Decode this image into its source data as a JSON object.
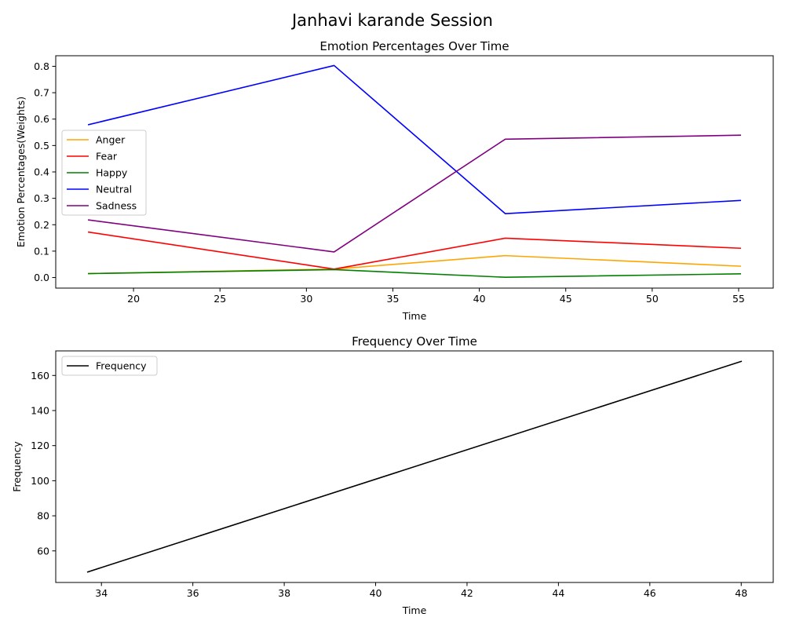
{
  "figure": {
    "suptitle": "Janhavi karande Session"
  },
  "chart_data": [
    {
      "type": "line",
      "title": "Emotion Percentages Over Time",
      "xlabel": "Time",
      "ylabel": "Emotion Percentages(Weights)",
      "xlim": [
        15.5,
        57.0
      ],
      "ylim": [
        -0.04,
        0.84
      ],
      "xticks": [
        20,
        25,
        30,
        35,
        40,
        45,
        50,
        55
      ],
      "yticks": [
        0.0,
        0.1,
        0.2,
        0.3,
        0.4,
        0.5,
        0.6,
        0.7,
        0.8
      ],
      "grid": false,
      "legend": "center-left",
      "x": [
        17.4,
        31.6,
        41.5,
        55.1
      ],
      "series": [
        {
          "name": "Anger",
          "color": "#ffa500",
          "values": [
            0.015,
            0.032,
            0.083,
            0.043
          ]
        },
        {
          "name": "Fear",
          "color": "#ff0000",
          "values": [
            0.172,
            0.032,
            0.149,
            0.111
          ]
        },
        {
          "name": "Happy",
          "color": "#008000",
          "values": [
            0.015,
            0.03,
            0.001,
            0.014
          ]
        },
        {
          "name": "Neutral",
          "color": "#0000ff",
          "values": [
            0.579,
            0.803,
            0.242,
            0.292
          ]
        },
        {
          "name": "Sadness",
          "color": "#800080",
          "values": [
            0.218,
            0.097,
            0.524,
            0.539
          ]
        }
      ]
    },
    {
      "type": "line",
      "title": "Frequency Over Time",
      "xlabel": "Time",
      "ylabel": "Frequency",
      "xlim": [
        33.0,
        48.7
      ],
      "ylim": [
        42.0,
        174.0
      ],
      "xticks": [
        34,
        36,
        38,
        40,
        42,
        44,
        46,
        48
      ],
      "yticks": [
        60,
        80,
        100,
        120,
        140,
        160
      ],
      "grid": false,
      "legend": "top-left",
      "x": [
        33.7,
        48.0
      ],
      "series": [
        {
          "name": "Frequency",
          "color": "#000000",
          "values": [
            48,
            168
          ]
        }
      ]
    }
  ]
}
